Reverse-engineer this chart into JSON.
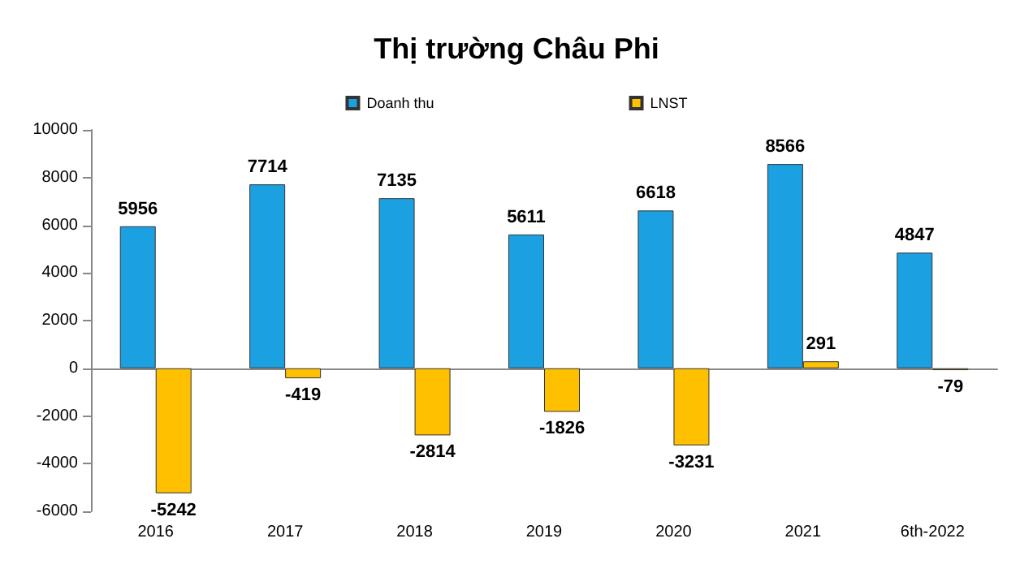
{
  "chart_data": {
    "type": "bar",
    "title": "Thị trường Châu Phi",
    "categories": [
      "2016",
      "2017",
      "2018",
      "2019",
      "2020",
      "2021",
      "6th-2022"
    ],
    "series": [
      {
        "name": "Doanh thu",
        "color": "#1ba1e2",
        "values": [
          5956,
          7714,
          7135,
          5611,
          6618,
          8566,
          4847
        ]
      },
      {
        "name": "LNST",
        "color": "#ffc000",
        "values": [
          -5242,
          -419,
          -2814,
          -1826,
          -3231,
          291,
          -79
        ]
      }
    ],
    "ylim": [
      -6000,
      10000
    ],
    "yticks": [
      -6000,
      -4000,
      -2000,
      0,
      2000,
      4000,
      6000,
      8000,
      10000
    ],
    "legend": "top",
    "data_labels": true
  }
}
